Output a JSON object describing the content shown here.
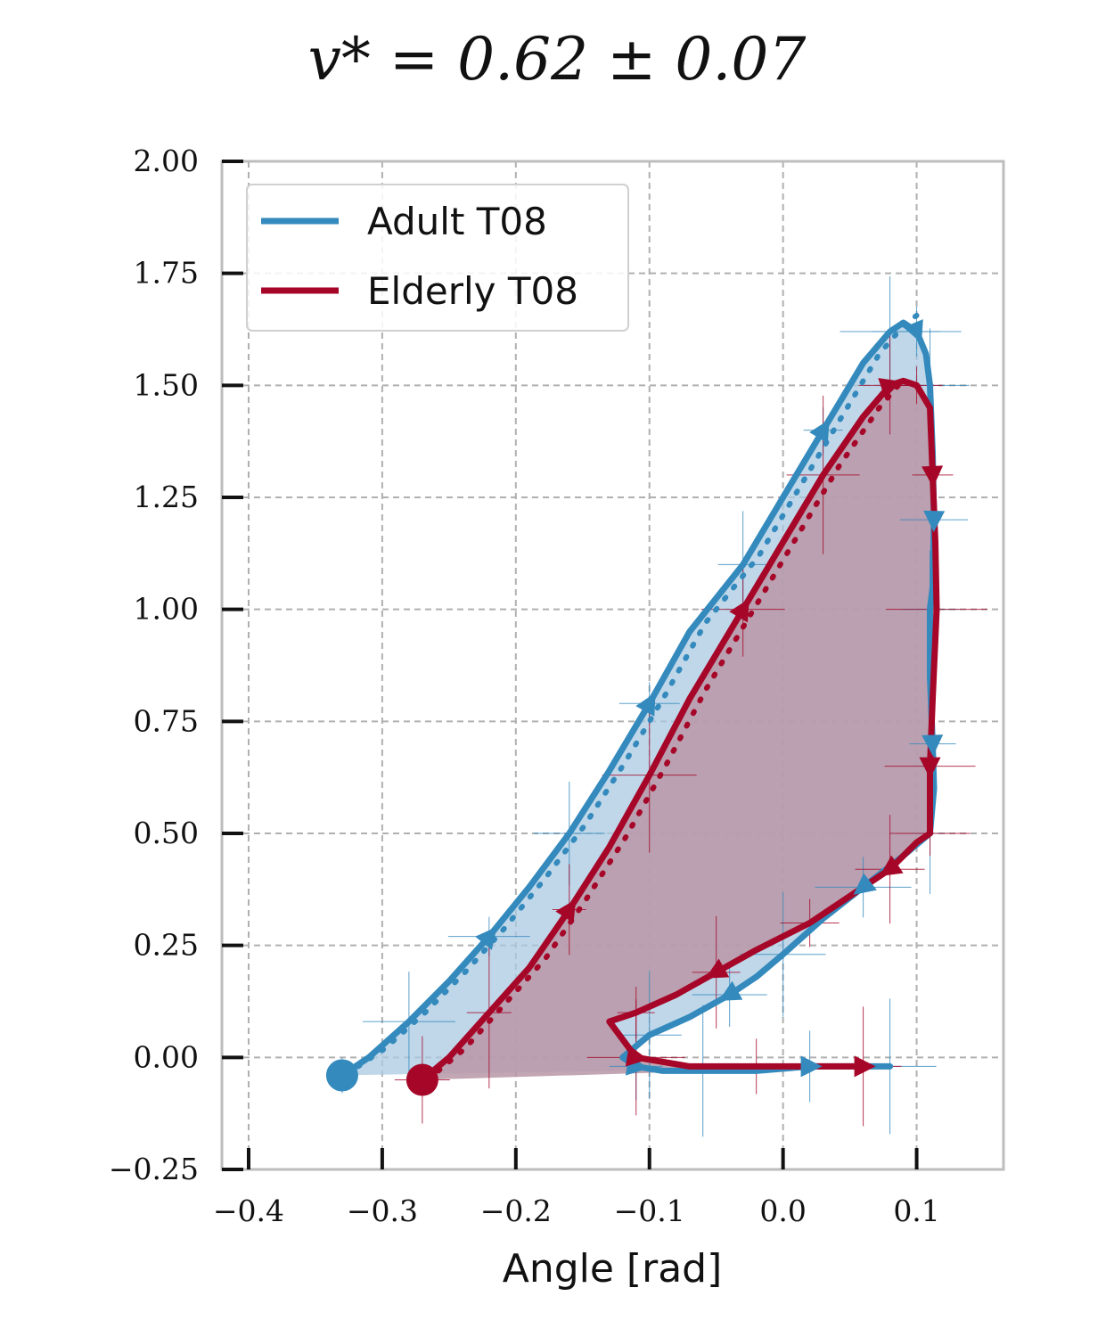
{
  "title": "v* = 0.62 ± 0.07",
  "chart_data": {
    "type": "line",
    "xlabel": "Angle [rad]",
    "ylabel": "",
    "xlim": [
      -0.42,
      0.165
    ],
    "ylim": [
      -0.25,
      2.0
    ],
    "xticks": [
      -0.4,
      -0.3,
      -0.2,
      -0.1,
      0.0,
      0.1
    ],
    "xtick_labels": [
      "−0.4",
      "−0.3",
      "−0.2",
      "−0.1",
      "0.0",
      "0.1"
    ],
    "yticks": [
      -0.25,
      0.0,
      0.25,
      0.5,
      0.75,
      1.0,
      1.25,
      1.5,
      1.75,
      2.0
    ],
    "ytick_labels": [
      "−0.25",
      "0.00",
      "0.25",
      "0.50",
      "0.75",
      "1.00",
      "1.25",
      "1.50",
      "1.75",
      "2.00"
    ],
    "grid": true,
    "legend_position": "top-left",
    "series": [
      {
        "name": "Adult T08",
        "color": "#348abd",
        "fill_color": "#a9c9e2",
        "x": [
          -0.33,
          -0.31,
          -0.28,
          -0.25,
          -0.22,
          -0.19,
          -0.16,
          -0.13,
          -0.1,
          -0.07,
          -0.03,
          0.0,
          0.03,
          0.06,
          0.08,
          0.09,
          0.1,
          0.107,
          0.11,
          0.112,
          0.113,
          0.112,
          0.11,
          0.11,
          0.112,
          0.113,
          0.11,
          0.09,
          0.06,
          0.03,
          0.0,
          -0.02,
          -0.04,
          -0.07,
          -0.1,
          -0.12,
          -0.11,
          -0.09,
          -0.06,
          -0.02,
          0.02,
          0.06,
          0.08
        ],
        "y": [
          -0.04,
          0.0,
          0.08,
          0.17,
          0.27,
          0.38,
          0.5,
          0.64,
          0.79,
          0.95,
          1.1,
          1.25,
          1.4,
          1.55,
          1.62,
          1.64,
          1.62,
          1.57,
          1.5,
          1.35,
          1.2,
          1.05,
          1.0,
          0.85,
          0.7,
          0.6,
          0.5,
          0.45,
          0.38,
          0.31,
          0.23,
          0.18,
          0.14,
          0.09,
          0.05,
          0.0,
          -0.02,
          -0.03,
          -0.03,
          -0.03,
          -0.02,
          -0.02,
          -0.02
        ]
      },
      {
        "name": "Elderly T08",
        "color": "#a60628",
        "fill_color": "#b896a6",
        "x": [
          -0.27,
          -0.25,
          -0.22,
          -0.19,
          -0.16,
          -0.13,
          -0.1,
          -0.07,
          -0.03,
          0.0,
          0.03,
          0.06,
          0.08,
          0.09,
          0.1,
          0.11,
          0.112,
          0.114,
          0.115,
          0.112,
          0.11,
          0.11,
          0.11,
          0.1,
          0.08,
          0.05,
          0.02,
          -0.02,
          -0.05,
          -0.08,
          -0.11,
          -0.13,
          -0.11,
          -0.07,
          -0.02,
          0.02,
          0.06
        ],
        "y": [
          -0.05,
          0.0,
          0.1,
          0.2,
          0.33,
          0.47,
          0.63,
          0.8,
          1.0,
          1.15,
          1.3,
          1.43,
          1.5,
          1.51,
          1.5,
          1.45,
          1.3,
          1.15,
          1.0,
          0.8,
          0.65,
          0.55,
          0.5,
          0.48,
          0.42,
          0.36,
          0.3,
          0.24,
          0.19,
          0.14,
          0.1,
          0.08,
          0.0,
          -0.02,
          -0.02,
          -0.02,
          -0.02
        ]
      }
    ]
  }
}
